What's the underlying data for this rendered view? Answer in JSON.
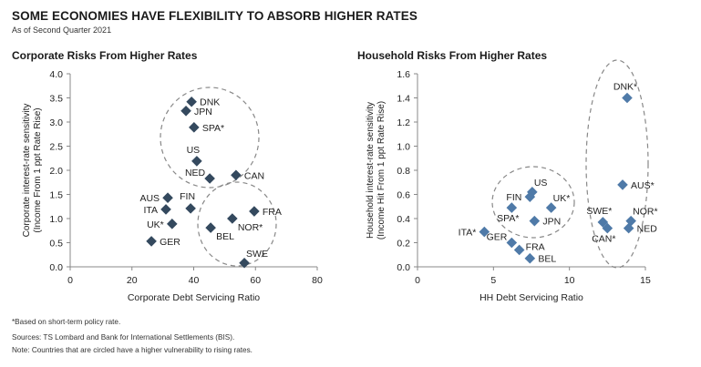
{
  "header": {
    "title": "SOME ECONOMIES HAVE FLEXIBILITY TO ABSORB HIGHER RATES",
    "subtitle": "As of Second Quarter 2021"
  },
  "footnotes": {
    "asterisk": "*Based on short-term policy rate.",
    "sources": "Sources: TS Lombard and Bank for International Settlements (BIS).",
    "note": "Note: Countries that are circled have a higher vulnerability to rising rates."
  },
  "colors": {
    "left_marker": "#34495e",
    "right_marker": "#4f7aa8",
    "circle": "#888888",
    "axis": "#888888"
  },
  "chart_data": [
    {
      "type": "scatter",
      "title": "Corporate Risks From Higher Rates",
      "xlabel": "Corporate Debt Servicing Ratio",
      "ylabel_line1": "Corporate interest-rate sensitivity",
      "ylabel_line2": "(Income From 1 ppt Rate Rise)",
      "xlim": [
        0,
        80
      ],
      "ylim": [
        0,
        4.0
      ],
      "xticks": [
        0,
        20,
        40,
        60,
        80
      ],
      "xtick_labels": [
        "0",
        "20",
        "40",
        "60",
        "80"
      ],
      "yticks": [
        0,
        0.5,
        1.0,
        1.5,
        2.0,
        2.5,
        3.0,
        3.5,
        4.0
      ],
      "ytick_labels": [
        "0.0",
        "0.5",
        "1.0",
        "1.5",
        "2.0",
        "2.5",
        "3.0",
        "3.5",
        "4.0"
      ],
      "grid": false,
      "points": [
        {
          "label": "DNK",
          "x": 39.3,
          "y": 3.42,
          "pos": "right"
        },
        {
          "label": "JPN",
          "x": 37.5,
          "y": 3.23,
          "pos": "right"
        },
        {
          "label": "SPA*",
          "x": 40.1,
          "y": 2.89,
          "pos": "right"
        },
        {
          "label": "US",
          "x": 41.0,
          "y": 2.19,
          "pos": "above-left"
        },
        {
          "label": "NED",
          "x": 45.2,
          "y": 1.83,
          "pos": "left-up"
        },
        {
          "label": "CAN",
          "x": 53.7,
          "y": 1.9,
          "pos": "right"
        },
        {
          "label": "AUS",
          "x": 31.6,
          "y": 1.43,
          "pos": "left"
        },
        {
          "label": "FIN",
          "x": 39.0,
          "y": 1.21,
          "pos": "above-left-far"
        },
        {
          "label": "ITA",
          "x": 31.0,
          "y": 1.19,
          "pos": "left"
        },
        {
          "label": "FRA",
          "x": 59.6,
          "y": 1.15,
          "pos": "right"
        },
        {
          "label": "NOR*",
          "x": 52.5,
          "y": 1.0,
          "pos": "below-right"
        },
        {
          "label": "UK*",
          "x": 33.0,
          "y": 0.89,
          "pos": "left"
        },
        {
          "label": "BEL",
          "x": 45.5,
          "y": 0.81,
          "pos": "below-right"
        },
        {
          "label": "GER",
          "x": 26.3,
          "y": 0.53,
          "pos": "right"
        },
        {
          "label": "SWE",
          "x": 56.4,
          "y": 0.08,
          "pos": "above-right"
        }
      ],
      "circled_groups": [
        {
          "members": [
            "DNK",
            "JPN",
            "SPA*",
            "US",
            "NED",
            "CAN"
          ]
        },
        {
          "members": [
            "NED",
            "CAN",
            "FRA",
            "NOR*",
            "BEL",
            "SWE"
          ]
        }
      ]
    },
    {
      "type": "scatter",
      "title": "Household Risks From Higher Rates",
      "xlabel": "HH Debt Servicing Ratio",
      "ylabel_line1": "Household interest-rate sensitivity",
      "ylabel_line2": "(Income Hit From 1 ppt Rate Rise)",
      "xlim": [
        0,
        15
      ],
      "ylim": [
        0,
        1.6
      ],
      "xticks": [
        0,
        5,
        10,
        15
      ],
      "xtick_labels": [
        "0",
        "5",
        "10",
        "15"
      ],
      "yticks": [
        0,
        0.2,
        0.4,
        0.6,
        0.8,
        1.0,
        1.2,
        1.4,
        1.6
      ],
      "ytick_labels": [
        "0.0",
        "0.2",
        "0.4",
        "0.6",
        "0.8",
        "1.0",
        "1.2",
        "1.4",
        "1.6"
      ],
      "grid": false,
      "points": [
        {
          "label": "DNK*",
          "x": 13.8,
          "y": 1.4,
          "pos": "above"
        },
        {
          "label": "AUS*",
          "x": 13.5,
          "y": 0.68,
          "pos": "right"
        },
        {
          "label": "US",
          "x": 7.55,
          "y": 0.62,
          "pos": "above-right"
        },
        {
          "label": "FIN",
          "x": 7.4,
          "y": 0.58,
          "pos": "left"
        },
        {
          "label": "SPA*",
          "x": 6.2,
          "y": 0.49,
          "pos": "below"
        },
        {
          "label": "UK*",
          "x": 8.8,
          "y": 0.49,
          "pos": "above-right"
        },
        {
          "label": "JPN",
          "x": 7.7,
          "y": 0.38,
          "pos": "right"
        },
        {
          "label": "NOR*",
          "x": 14.05,
          "y": 0.38,
          "pos": "above-right"
        },
        {
          "label": "SWE*",
          "x": 12.2,
          "y": 0.37,
          "pos": "above-left"
        },
        {
          "label": "CAN*",
          "x": 12.5,
          "y": 0.32,
          "pos": "below"
        },
        {
          "label": "NED",
          "x": 13.9,
          "y": 0.32,
          "pos": "right"
        },
        {
          "label": "ITA*",
          "x": 4.4,
          "y": 0.29,
          "pos": "left"
        },
        {
          "label": "GER",
          "x": 6.2,
          "y": 0.2,
          "pos": "left-up"
        },
        {
          "label": "FRA",
          "x": 6.7,
          "y": 0.14,
          "pos": "right-up"
        },
        {
          "label": "BEL",
          "x": 7.4,
          "y": 0.07,
          "pos": "right"
        }
      ],
      "circled_groups": [
        {
          "members": [
            "US",
            "FIN",
            "SPA*",
            "UK*",
            "JPN"
          ]
        },
        {
          "members": [
            "DNK*",
            "AUS*",
            "NOR*",
            "SWE*",
            "CAN*",
            "NED"
          ]
        }
      ]
    }
  ]
}
